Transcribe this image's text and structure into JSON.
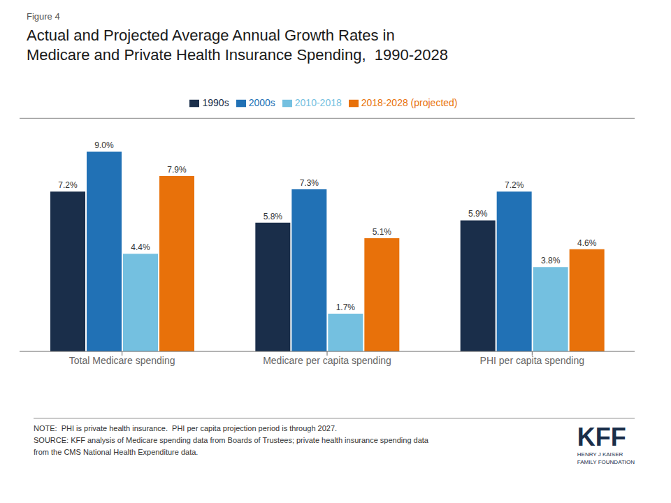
{
  "chart_data": {
    "type": "bar",
    "title": "Actual and Projected Average Annual Growth Rates in\nMedicare and Private Health Insurance Spending,  1990-2028",
    "categories": [
      "Total Medicare spending",
      "Medicare per capita spending",
      "PHI per capita spending"
    ],
    "series": [
      {
        "name": "1990s",
        "color": "#1a2e4a",
        "values": [
          7.2,
          5.8,
          5.9
        ],
        "value_labels": [
          "7.2%",
          "5.8%",
          "5.9%"
        ]
      },
      {
        "name": "2000s",
        "color": "#2171b5",
        "values": [
          9.0,
          7.3,
          7.2
        ],
        "value_labels": [
          "9.0%",
          "7.3%",
          "7.2%"
        ]
      },
      {
        "name": "2010-2018",
        "color": "#74c0e0",
        "values": [
          4.4,
          1.7,
          3.8
        ],
        "value_labels": [
          "4.4%",
          "1.7%",
          "3.8%"
        ]
      },
      {
        "name": "2018-2028 (projected)",
        "color": "#e8710a",
        "values": [
          7.9,
          5.1,
          4.6
        ],
        "value_labels": [
          "7.9%",
          "5.1%",
          "4.6%"
        ]
      }
    ],
    "ylim": [
      0,
      10.5
    ],
    "data_labels": true,
    "legend": "top",
    "grid": false,
    "tick_labels": "x",
    "annotations": [
      "Figure 4",
      "NOTE:  PHI is private health insurance.  PHI per capita projection period is through 2027.",
      "SOURCE: KFF analysis of Medicare spending data from Boards of Trustees; private health insurance spending data",
      "from the CMS National Health Expenditure data.",
      "KFF",
      "HENRY J KAISER\nFAMILY FOUNDATION"
    ]
  }
}
